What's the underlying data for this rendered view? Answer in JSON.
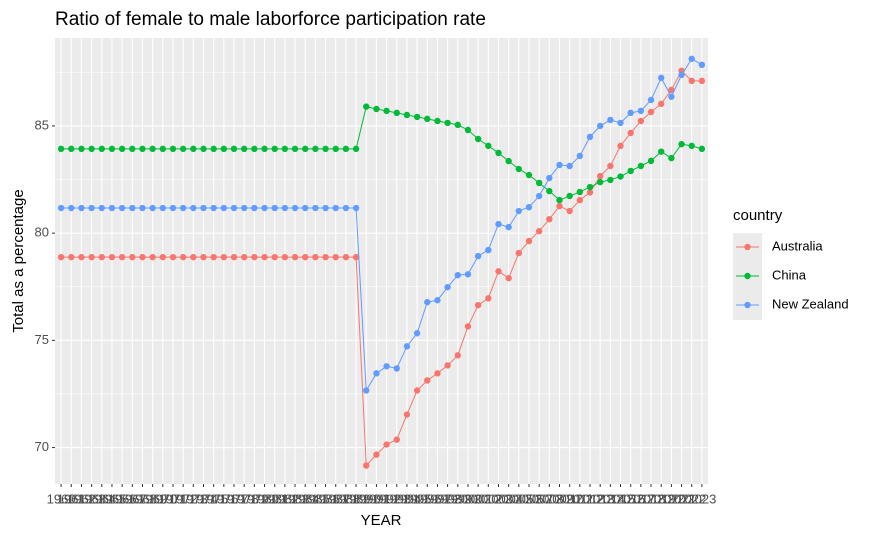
{
  "chart_data": {
    "type": "line",
    "title": "Ratio of female to male laborforce participation rate",
    "x_label": "YEAR",
    "y_label": "Total as a percentage",
    "legend_title": "country",
    "legend_position": "right",
    "grid": true,
    "categories": [
      "1960",
      "1961",
      "1962",
      "1963",
      "1964",
      "1965",
      "1966",
      "1967",
      "1968",
      "1969",
      "1970",
      "1971",
      "1972",
      "1973",
      "1974",
      "1975",
      "1976",
      "1977",
      "1978",
      "1979",
      "1980",
      "1981",
      "1982",
      "1983",
      "1984",
      "1985",
      "1986",
      "1987",
      "1988",
      "1989",
      "1990",
      "1991",
      "1992",
      "1993",
      "1994",
      "1995",
      "1996",
      "1997",
      "1998",
      "1999",
      "2000",
      "2001",
      "2002",
      "2003",
      "2004",
      "2005",
      "2006",
      "2007",
      "2008",
      "2009",
      "2010",
      "2011",
      "2012",
      "2013",
      "2014",
      "2015",
      "2016",
      "2017",
      "2018",
      "2019",
      "2020",
      "2021",
      "2022",
      "2023"
    ],
    "ylim": [
      68.3,
      89.1
    ],
    "yticks": [
      70,
      75,
      80,
      85
    ],
    "series": [
      {
        "name": "Australia",
        "color": "#F8766D",
        "values": [
          78.88,
          78.88,
          78.88,
          78.88,
          78.88,
          78.88,
          78.88,
          78.88,
          78.88,
          78.88,
          78.88,
          78.88,
          78.88,
          78.88,
          78.88,
          78.88,
          78.88,
          78.88,
          78.88,
          78.88,
          78.88,
          78.88,
          78.88,
          78.88,
          78.88,
          78.88,
          78.88,
          78.88,
          78.88,
          78.88,
          69.16,
          69.67,
          70.14,
          70.37,
          71.54,
          72.66,
          73.13,
          73.46,
          73.83,
          74.3,
          75.65,
          76.64,
          76.96,
          78.22,
          77.9,
          79.07,
          79.63,
          80.09,
          80.65,
          81.26,
          81.03,
          81.54,
          81.9,
          82.66,
          83.13,
          84.07,
          84.67,
          85.23,
          85.65,
          86.03,
          86.68,
          87.57,
          87.1,
          87.1
        ]
      },
      {
        "name": "China",
        "color": "#00BA38",
        "values": [
          83.93,
          83.93,
          83.93,
          83.93,
          83.93,
          83.93,
          83.93,
          83.93,
          83.93,
          83.93,
          83.93,
          83.93,
          83.93,
          83.93,
          83.93,
          83.93,
          83.93,
          83.93,
          83.93,
          83.93,
          83.93,
          83.93,
          83.93,
          83.93,
          83.93,
          83.93,
          83.93,
          83.93,
          83.93,
          83.93,
          85.9,
          85.79,
          85.7,
          85.61,
          85.51,
          85.42,
          85.33,
          85.23,
          85.14,
          85.05,
          84.81,
          84.39,
          84.07,
          83.74,
          83.36,
          82.99,
          82.71,
          82.34,
          81.96,
          81.54,
          81.73,
          81.92,
          82.15,
          82.38,
          82.48,
          82.64,
          82.9,
          83.13,
          83.37,
          83.8,
          83.5,
          84.15,
          84.07,
          83.93
        ]
      },
      {
        "name": "New Zealand",
        "color": "#619CFF",
        "values": [
          81.17,
          81.17,
          81.17,
          81.17,
          81.17,
          81.17,
          81.17,
          81.17,
          81.17,
          81.17,
          81.17,
          81.17,
          81.17,
          81.17,
          81.17,
          81.17,
          81.17,
          81.17,
          81.17,
          81.17,
          81.17,
          81.17,
          81.17,
          81.17,
          81.17,
          81.17,
          81.17,
          81.17,
          81.17,
          81.17,
          72.66,
          73.46,
          73.79,
          73.69,
          74.72,
          75.33,
          76.78,
          76.87,
          77.48,
          78.04,
          78.08,
          78.93,
          79.21,
          80.42,
          80.28,
          81.03,
          81.21,
          81.73,
          82.57,
          83.18,
          83.13,
          83.6,
          84.49,
          85.0,
          85.28,
          85.14,
          85.61,
          85.7,
          86.21,
          87.24,
          86.36,
          87.38,
          88.13,
          87.85
        ]
      }
    ]
  }
}
